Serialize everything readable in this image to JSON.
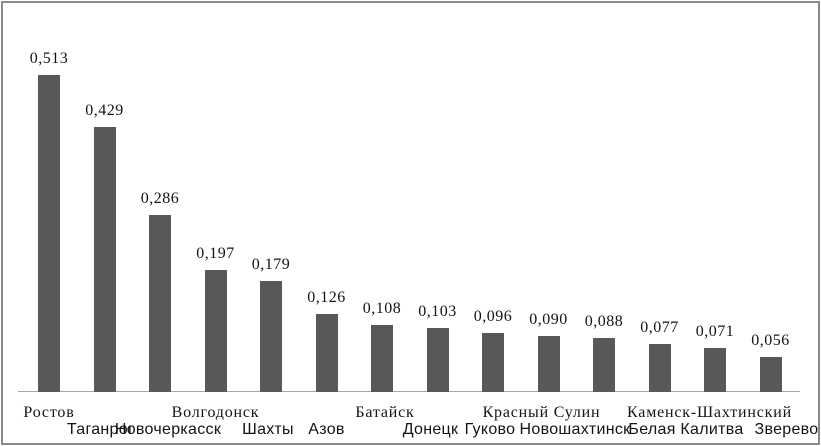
{
  "chart_data": {
    "type": "bar",
    "title": "",
    "xlabel": "",
    "ylabel": "",
    "categories": [
      "Ростов",
      "Таганрог",
      "Новочеркасск",
      "Волгодонск",
      "Шахты",
      "Азов",
      "Батайск",
      "Донецк",
      "Гуково",
      "Красный Сулин",
      "Новошахтинск",
      "Каменск-Шахтинский",
      "Белая Калитва",
      "Зверево"
    ],
    "values": [
      0.513,
      0.429,
      0.286,
      0.197,
      0.179,
      0.126,
      0.108,
      0.103,
      0.096,
      0.09,
      0.088,
      0.077,
      0.071,
      0.056
    ],
    "value_labels": [
      "0,513",
      "0,429",
      "0,286",
      "0,197",
      "0,179",
      "0,126",
      "0,108",
      "0,103",
      "0,096",
      "0,090",
      "0,088",
      "0,077",
      "0,071",
      "0,056"
    ],
    "ylim": [
      0,
      0.56
    ],
    "grid": false,
    "legend": false,
    "colors": {
      "bar": "#585858",
      "axis": "#a8a8a8",
      "frame": "#8a8a8a",
      "text": "#141414",
      "background": "#ffffff"
    },
    "layout_hints": {
      "label_row": [
        1,
        2,
        2,
        1,
        2,
        2,
        1,
        2,
        2,
        1,
        2,
        1,
        2,
        2
      ],
      "label_dx": [
        0,
        -4,
        8,
        0,
        -3,
        0,
        3,
        -7,
        -3,
        -7,
        -29,
        50,
        -29,
        16
      ]
    }
  }
}
